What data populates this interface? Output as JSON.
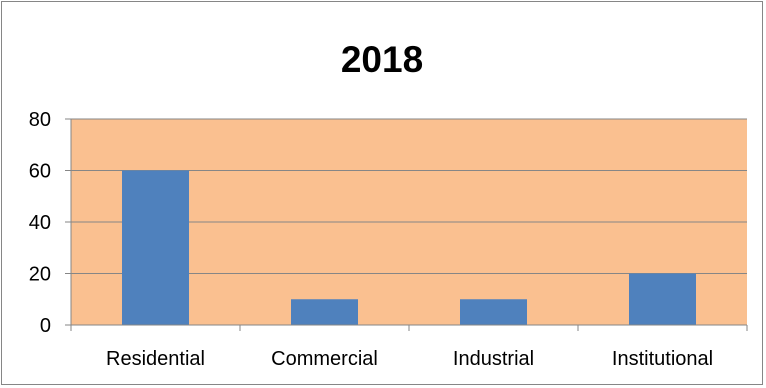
{
  "chart_data": {
    "type": "bar",
    "title": "2018",
    "categories": [
      "Residential",
      "Commercial",
      "Industrial",
      "Institutional"
    ],
    "series": [
      {
        "values": [
          60,
          10,
          10,
          20
        ],
        "color": "#4f81bd"
      }
    ],
    "ylim": [
      0,
      80
    ],
    "yticks": [
      0,
      20,
      40,
      60,
      80
    ],
    "xlabel": "",
    "ylabel": "",
    "grid": true,
    "legend": "none",
    "plot_area_color": "#fac090",
    "gridline_color": "#868686"
  }
}
